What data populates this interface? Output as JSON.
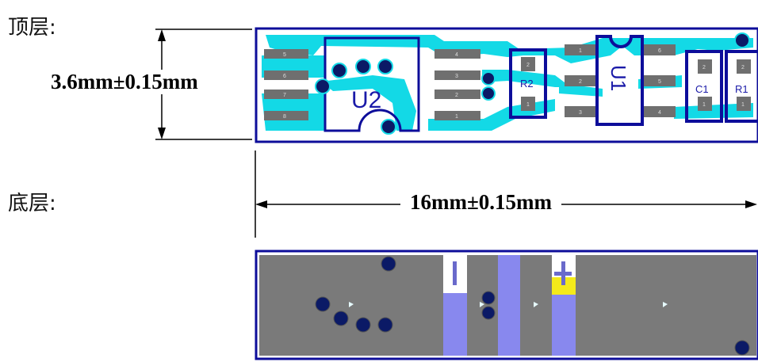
{
  "labels": {
    "top_layer": "顶层:",
    "bottom_layer": "底层:"
  },
  "dimensions": {
    "height": "3.6mm±0.15mm",
    "width": "16mm±0.15mm"
  },
  "top_layer": {
    "refs": {
      "u2": "U2",
      "r2": "R2",
      "u1": "U1",
      "c1": "C1",
      "r1": "R1"
    },
    "pins": {
      "left_header": [
        "5",
        "6",
        "7",
        "8"
      ],
      "u2_right": [
        "4",
        "3",
        "2",
        "1"
      ],
      "u1_left": [
        "1",
        "2",
        "3"
      ],
      "u1_right": [
        "6",
        "5",
        "4"
      ],
      "r2": [
        "2",
        "1"
      ],
      "c1": [
        "2",
        "1"
      ],
      "r1": [
        "2",
        "1"
      ]
    }
  },
  "bottom_layer": {
    "markers": {
      "minus": "-",
      "plus": "+"
    }
  },
  "colors": {
    "board_top": "#ffffff",
    "trace": "#13d9e6",
    "outline": "#0d0d9a",
    "pad": "#6f6f6f",
    "via": "#0b1a66",
    "board_bottom": "#7a7a7a",
    "copper_bottom": "#8888ee",
    "plus_mark": "#f4ea1a"
  }
}
